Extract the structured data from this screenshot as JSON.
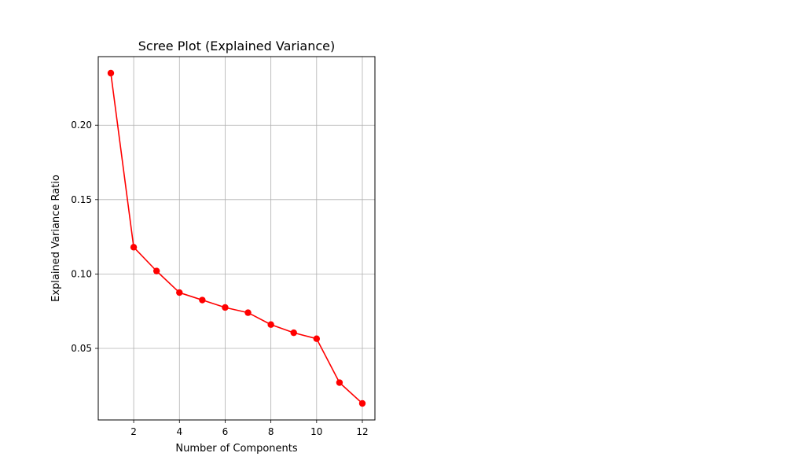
{
  "chart_data": {
    "type": "line",
    "title": "Scree Plot (Explained Variance)",
    "xlabel": "Number of Components",
    "ylabel": "Explained Variance Ratio",
    "x": [
      1,
      2,
      3,
      4,
      5,
      6,
      7,
      8,
      9,
      10,
      11,
      12
    ],
    "series": [
      {
        "values": [
          0.235,
          0.118,
          0.102,
          0.0875,
          0.0825,
          0.0775,
          0.074,
          0.066,
          0.0605,
          0.0565,
          0.027,
          0.013
        ]
      }
    ],
    "xlim": [
      0.45,
      12.55
    ],
    "ylim": [
      0.0019,
      0.2461
    ],
    "xticks": [
      2,
      4,
      6,
      8,
      10,
      12
    ],
    "yticks": [
      0.05,
      0.1,
      0.15,
      0.2
    ],
    "xtick_labels": [
      "2",
      "4",
      "6",
      "8",
      "10",
      "12"
    ],
    "ytick_labels": [
      "0.05",
      "0.10",
      "0.15",
      "0.20"
    ],
    "grid": true,
    "marker": "circle",
    "line_color": "#ff0000",
    "grid_color": "#b0b0b0"
  }
}
